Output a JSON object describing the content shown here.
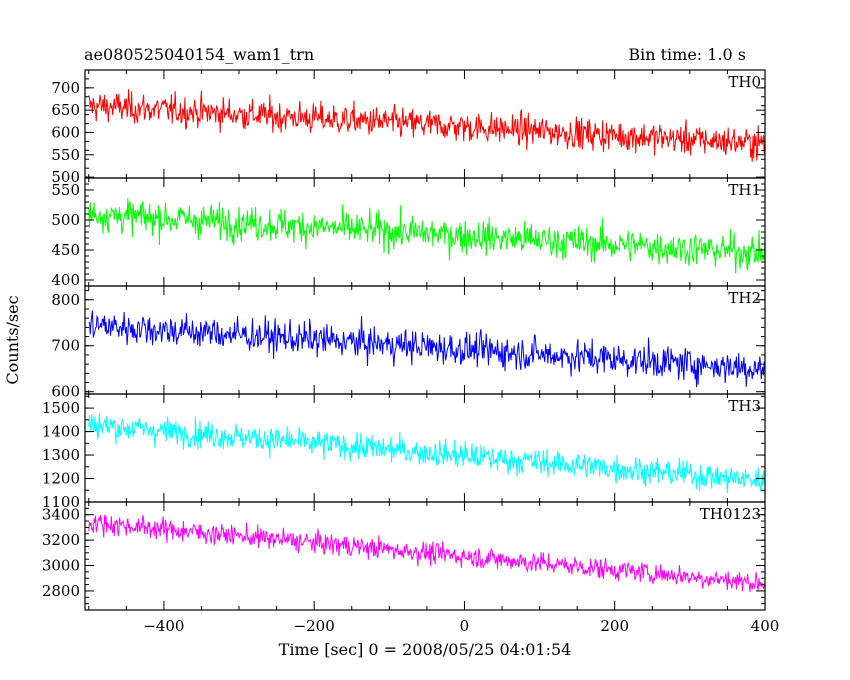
{
  "header": {
    "title": "ae080525040154_wam1_trn",
    "bin_time": "Bin time: 1.0 s"
  },
  "axes": {
    "xlabel": "Time [sec] 0 = 2008/05/25 04:01:54",
    "ylabel": "Counts/sec"
  },
  "chart_data": {
    "type": "line",
    "title": "ae080525040154_wam1_trn",
    "subtitle": "Bin time: 1.0 s",
    "xlabel": "Time [sec] 0 = 2008/05/25 04:01:54",
    "ylabel": "Counts/sec",
    "xlim": [
      -505,
      400
    ],
    "x_step": 1.0,
    "xticks": [
      -400,
      -200,
      0,
      200,
      400
    ],
    "panels": [
      {
        "name": "TH0",
        "color": "#ff0000",
        "ylim": [
          498,
          740
        ],
        "yticks": [
          500,
          550,
          600,
          650,
          700
        ],
        "trend": {
          "x": [
            -500,
            400
          ],
          "y": [
            660,
            575
          ]
        },
        "noise": 27
      },
      {
        "name": "TH1",
        "color": "#00ff00",
        "ylim": [
          390,
          570
        ],
        "yticks": [
          400,
          450,
          500,
          550
        ],
        "trend": {
          "x": [
            -500,
            400
          ],
          "y": [
            510,
            445
          ]
        },
        "noise": 22
      },
      {
        "name": "TH2",
        "color": "#0000ff",
        "ylim": [
          595,
          830
        ],
        "yticks": [
          600,
          700,
          800
        ],
        "trend": {
          "x": [
            -500,
            400
          ],
          "y": [
            745,
            650
          ]
        },
        "noise": 28
      },
      {
        "name": "TH3",
        "color": "#00ffff",
        "ylim": [
          1100,
          1560
        ],
        "yticks": [
          1100,
          1200,
          1300,
          1400,
          1500
        ],
        "trend": {
          "x": [
            -500,
            400
          ],
          "y": [
            1430,
            1190
          ]
        },
        "noise": 45
      },
      {
        "name": "TH0123",
        "color": "#ff00ff",
        "ylim": [
          2650,
          3500
        ],
        "yticks": [
          2800,
          3000,
          3200,
          3400
        ],
        "trend": {
          "x": [
            -500,
            400
          ],
          "y": [
            3340,
            2860
          ]
        },
        "noise": 65
      }
    ]
  }
}
